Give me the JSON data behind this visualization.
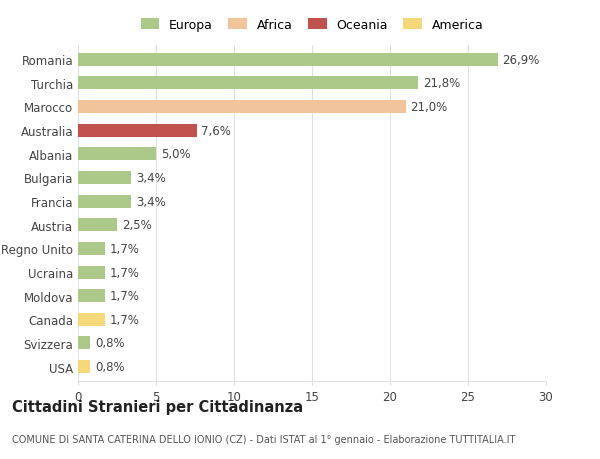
{
  "categories": [
    "Romania",
    "Turchia",
    "Marocco",
    "Australia",
    "Albania",
    "Bulgaria",
    "Francia",
    "Austria",
    "Regno Unito",
    "Ucraina",
    "Moldova",
    "Canada",
    "Svizzera",
    "USA"
  ],
  "values": [
    26.9,
    21.8,
    21.0,
    7.6,
    5.0,
    3.4,
    3.4,
    2.5,
    1.7,
    1.7,
    1.7,
    1.7,
    0.8,
    0.8
  ],
  "labels": [
    "26,9%",
    "21,8%",
    "21,0%",
    "7,6%",
    "5,0%",
    "3,4%",
    "3,4%",
    "2,5%",
    "1,7%",
    "1,7%",
    "1,7%",
    "1,7%",
    "0,8%",
    "0,8%"
  ],
  "colors": [
    "#adc98a",
    "#adc98a",
    "#f2c49b",
    "#c0514d",
    "#adc98a",
    "#adc98a",
    "#adc98a",
    "#adc98a",
    "#adc98a",
    "#adc98a",
    "#adc98a",
    "#f5d87a",
    "#adc98a",
    "#f5d87a"
  ],
  "legend": [
    {
      "label": "Europa",
      "color": "#adc98a"
    },
    {
      "label": "Africa",
      "color": "#f2c49b"
    },
    {
      "label": "Oceania",
      "color": "#c0514d"
    },
    {
      "label": "America",
      "color": "#f5d87a"
    }
  ],
  "xlim": [
    0,
    30
  ],
  "xticks": [
    0,
    5,
    10,
    15,
    20,
    25,
    30
  ],
  "title": "Cittadini Stranieri per Cittadinanza",
  "subtitle": "COMUNE DI SANTA CATERINA DELLO IONIO (CZ) - Dati ISTAT al 1° gennaio - Elaborazione TUTTITALIA.IT",
  "background_color": "#ffffff",
  "grid_color": "#e0e0e0",
  "bar_height": 0.55,
  "label_fontsize": 8.5,
  "ytick_fontsize": 8.5,
  "xtick_fontsize": 8.5,
  "title_fontsize": 10.5,
  "subtitle_fontsize": 7.0
}
